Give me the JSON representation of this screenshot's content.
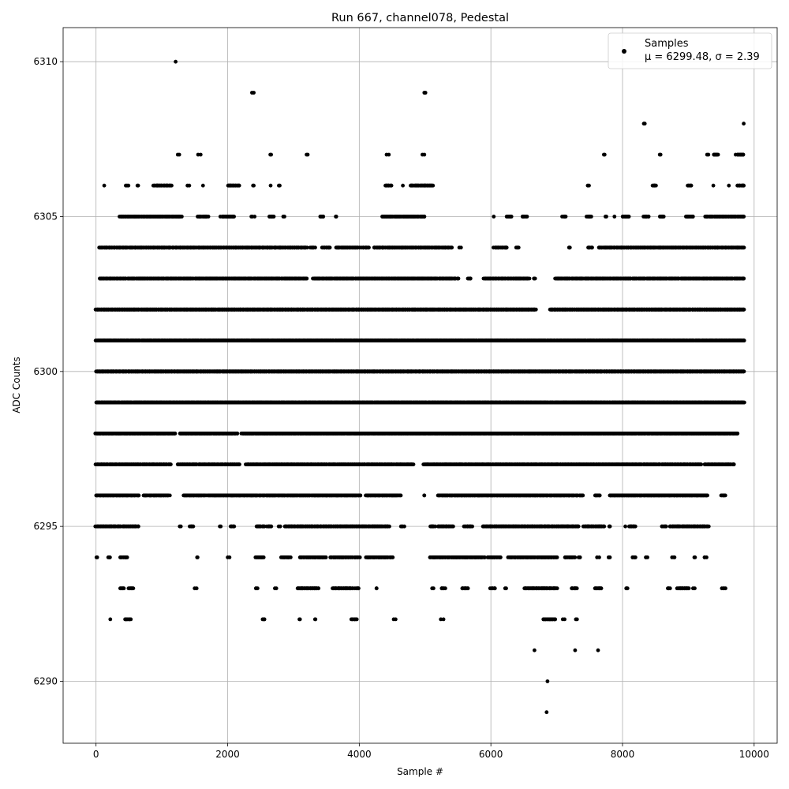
{
  "chart_data": {
    "type": "scatter",
    "title": "Run 667, channel078, Pedestal",
    "xlabel": "Sample #",
    "ylabel": "ADC Counts",
    "xlim": [
      -500,
      10350
    ],
    "ylim": [
      6288,
      6311.1
    ],
    "x_ticks": [
      0,
      2000,
      4000,
      6000,
      8000,
      10000
    ],
    "y_ticks": [
      6290,
      6295,
      6300,
      6305,
      6310
    ],
    "grid": true,
    "legend": {
      "placement": "top-right",
      "label": "Samples",
      "stats_text": "μ = 6299.48, σ = 2.39"
    },
    "marker_color": "#000000",
    "series": [
      {
        "name": "Samples",
        "n_points": 9855,
        "mean": 6299.48,
        "std": 2.39,
        "level_ranges": [
          {
            "y": 6289,
            "ranges": [
              [
                6840,
                6842
              ]
            ]
          },
          {
            "y": 6290,
            "ranges": [
              [
                6850,
                6852
              ]
            ]
          },
          {
            "y": 6291,
            "ranges": [
              [
                6670,
                6672
              ],
              [
                7270,
                7272
              ],
              [
                7620,
                7622
              ]
            ]
          },
          {
            "y": 6292,
            "ranges": [
              [
                220,
                230
              ],
              [
                440,
                520
              ],
              [
                2530,
                2570
              ],
              [
                3080,
                3100
              ],
              [
                3320,
                3340
              ],
              [
                3890,
                3960
              ],
              [
                4530,
                4550
              ],
              [
                5250,
                5270
              ],
              [
                6800,
                6980
              ],
              [
                7100,
                7120
              ],
              [
                7290,
                7310
              ]
            ]
          },
          {
            "y": 6293,
            "ranges": [
              [
                370,
                420
              ],
              [
                500,
                560
              ],
              [
                1500,
                1520
              ],
              [
                2430,
                2460
              ],
              [
                2720,
                2740
              ],
              [
                3060,
                3380
              ],
              [
                3600,
                3900
              ],
              [
                3940,
                3990
              ],
              [
                4250,
                4270
              ],
              [
                5110,
                5130
              ],
              [
                5250,
                5300
              ],
              [
                5560,
                5650
              ],
              [
                6000,
                6060
              ],
              [
                6210,
                6230
              ],
              [
                6510,
                7000
              ],
              [
                7230,
                7310
              ],
              [
                7580,
                7680
              ],
              [
                8050,
                8080
              ],
              [
                8680,
                8720
              ],
              [
                8840,
                9010
              ],
              [
                9080,
                9100
              ],
              [
                9520,
                9560
              ]
            ]
          },
          {
            "y": 6294,
            "ranges": [
              [
                0,
                20
              ],
              [
                180,
                220
              ],
              [
                370,
                480
              ],
              [
                1530,
                1550
              ],
              [
                2000,
                2020
              ],
              [
                2430,
                2550
              ],
              [
                2820,
                2950
              ],
              [
                3100,
                3500
              ],
              [
                3560,
                3860
              ],
              [
                3900,
                4000
              ],
              [
                4100,
                4500
              ],
              [
                5080,
                5900
              ],
              [
                5960,
                6150
              ],
              [
                6270,
                7000
              ],
              [
                7120,
                7270
              ],
              [
                7330,
                7360
              ],
              [
                7620,
                7640
              ],
              [
                7780,
                7820
              ],
              [
                8150,
                8200
              ],
              [
                8350,
                8380
              ],
              [
                8760,
                8790
              ],
              [
                9090,
                9110
              ],
              [
                9240,
                9270
              ]
            ]
          },
          {
            "y": 6295,
            "ranges": [
              [
                0,
                650
              ],
              [
                1260,
                1280
              ],
              [
                1430,
                1480
              ],
              [
                1870,
                1890
              ],
              [
                2050,
                2100
              ],
              [
                2440,
                2560
              ],
              [
                2600,
                2660
              ],
              [
                2780,
                2800
              ],
              [
                2870,
                4450
              ],
              [
                4640,
                4680
              ],
              [
                5080,
                5150
              ],
              [
                5200,
                5420
              ],
              [
                5600,
                5720
              ],
              [
                5880,
                6540
              ],
              [
                6550,
                7340
              ],
              [
                7410,
                7720
              ],
              [
                7790,
                7820
              ],
              [
                8050,
                8060
              ],
              [
                8100,
                8200
              ],
              [
                8600,
                8660
              ],
              [
                8720,
                9300
              ]
            ]
          },
          {
            "y": 6296,
            "ranges": [
              [
                0,
                650
              ],
              [
                720,
                1110
              ],
              [
                1330,
                1660
              ],
              [
                1700,
                4020
              ],
              [
                4100,
                4620
              ],
              [
                4980,
                5000
              ],
              [
                5200,
                7400
              ],
              [
                7580,
                7660
              ],
              [
                7800,
                9300
              ],
              [
                9500,
                9560
              ]
            ]
          },
          {
            "y": 6297,
            "ranges": [
              [
                0,
                1140
              ],
              [
                1240,
                2180
              ],
              [
                2280,
                4820
              ],
              [
                4980,
                9200
              ],
              [
                9250,
                9700
              ]
            ]
          },
          {
            "y": 6298,
            "ranges": [
              [
                0,
                1200
              ],
              [
                1280,
                2150
              ],
              [
                2220,
                9750
              ]
            ]
          },
          {
            "y": 6299,
            "ranges": [
              [
                0,
                9850
              ]
            ]
          },
          {
            "y": 6300,
            "ranges": [
              [
                0,
                9850
              ]
            ]
          },
          {
            "y": 6301,
            "ranges": [
              [
                0,
                9850
              ]
            ]
          },
          {
            "y": 6302,
            "ranges": [
              [
                0,
                6680
              ],
              [
                6900,
                9850
              ]
            ]
          },
          {
            "y": 6303,
            "ranges": [
              [
                50,
                3200
              ],
              [
                3300,
                5500
              ],
              [
                5650,
                5700
              ],
              [
                5900,
                6580
              ],
              [
                6650,
                6680
              ],
              [
                6980,
                9850
              ]
            ]
          },
          {
            "y": 6304,
            "ranges": [
              [
                50,
                3200
              ],
              [
                3260,
                3320
              ],
              [
                3440,
                3560
              ],
              [
                3640,
                4000
              ],
              [
                4050,
                4150
              ],
              [
                4220,
                5400
              ],
              [
                5530,
                5550
              ],
              [
                6050,
                6250
              ],
              [
                6380,
                6420
              ],
              [
                7180,
                7210
              ],
              [
                7480,
                7540
              ],
              [
                7640,
                9850
              ]
            ]
          },
          {
            "y": 6305,
            "ranges": [
              [
                360,
                1300
              ],
              [
                1550,
                1700
              ],
              [
                1900,
                2100
              ],
              [
                2370,
                2400
              ],
              [
                2630,
                2700
              ],
              [
                2840,
                2860
              ],
              [
                3400,
                3460
              ],
              [
                3640,
                3660
              ],
              [
                4350,
                5000
              ],
              [
                6040,
                6050
              ],
              [
                6250,
                6320
              ],
              [
                6470,
                6540
              ],
              [
                7090,
                7140
              ],
              [
                7460,
                7520
              ],
              [
                7740,
                7760
              ],
              [
                7870,
                7880
              ],
              [
                8000,
                8100
              ],
              [
                8330,
                8400
              ],
              [
                8560,
                8630
              ],
              [
                8960,
                9080
              ],
              [
                9260,
                9850
              ]
            ]
          },
          {
            "y": 6306,
            "ranges": [
              [
                130,
                140
              ],
              [
                460,
                490
              ],
              [
                630,
                650
              ],
              [
                880,
                1140
              ],
              [
                1400,
                1420
              ],
              [
                1610,
                1620
              ],
              [
                2000,
                2180
              ],
              [
                2380,
                2400
              ],
              [
                2650,
                2660
              ],
              [
                2780,
                2800
              ],
              [
                4400,
                4490
              ],
              [
                4660,
                4670
              ],
              [
                4780,
                5120
              ],
              [
                7480,
                7500
              ],
              [
                8450,
                8500
              ],
              [
                9000,
                9050
              ],
              [
                9370,
                9380
              ],
              [
                9610,
                9620
              ],
              [
                9750,
                9850
              ]
            ]
          },
          {
            "y": 6307,
            "ranges": [
              [
                1250,
                1270
              ],
              [
                1560,
                1580
              ],
              [
                2640,
                2660
              ],
              [
                3190,
                3210
              ],
              [
                4420,
                4440
              ],
              [
                4970,
                4990
              ],
              [
                7720,
                7740
              ],
              [
                8570,
                8590
              ],
              [
                9280,
                9300
              ],
              [
                9380,
                9450
              ],
              [
                9730,
                9840
              ]
            ]
          },
          {
            "y": 6308,
            "ranges": [
              [
                8330,
                8350
              ],
              [
                9840,
                9850
              ]
            ]
          },
          {
            "y": 6309,
            "ranges": [
              [
                2380,
                2400
              ],
              [
                4980,
                5000
              ]
            ]
          },
          {
            "y": 6310,
            "ranges": [
              [
                1210,
                1220
              ]
            ]
          }
        ]
      }
    ]
  }
}
